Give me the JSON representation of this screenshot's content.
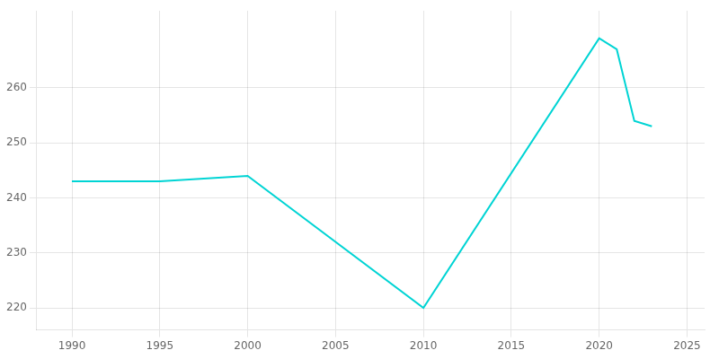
{
  "chart_data": {
    "type": "line",
    "x": [
      1990,
      1995,
      2000,
      2010,
      2020,
      2021,
      2022,
      2023
    ],
    "values": [
      243,
      243,
      244,
      220,
      269,
      267,
      254,
      253
    ],
    "color": "#00D4D4",
    "xlim": [
      1988,
      2026
    ],
    "ylim": [
      216,
      274
    ],
    "xticks": [
      1990,
      1995,
      2000,
      2005,
      2010,
      2015,
      2020,
      2025
    ],
    "yticks": [
      220,
      230,
      240,
      250,
      260
    ],
    "grid": true
  }
}
